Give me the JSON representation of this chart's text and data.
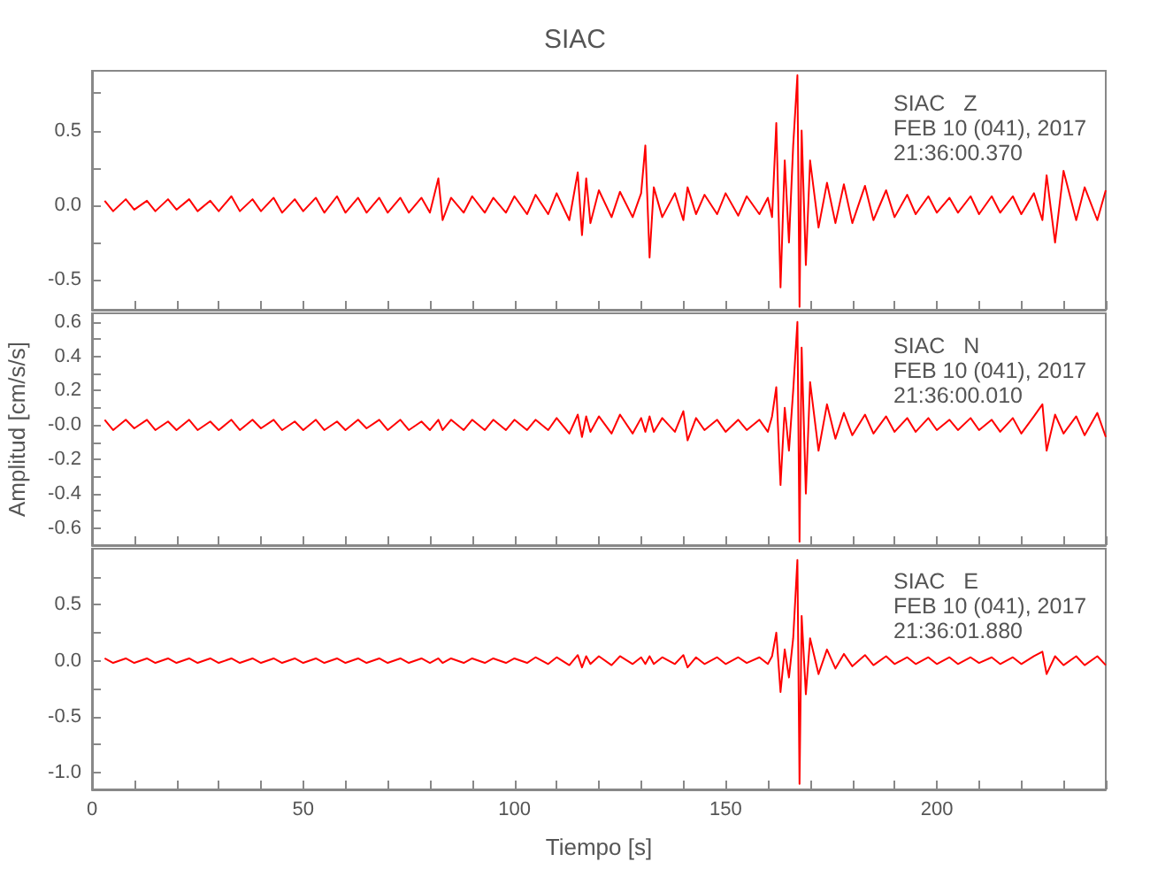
{
  "chart_data": [
    {
      "type": "line",
      "title": "SIAC",
      "annotations": [
        "SIAC   Z",
        "FEB 10 (041), 2017",
        "21:36:00.370"
      ],
      "tick_labels": "y",
      "grid": false,
      "x": [
        3,
        5,
        8,
        10,
        13,
        15,
        18,
        20,
        23,
        25,
        28,
        30,
        33,
        35,
        38,
        40,
        43,
        45,
        48,
        50,
        53,
        55,
        58,
        60,
        63,
        65,
        68,
        70,
        73,
        75,
        78,
        80,
        82,
        83,
        85,
        88,
        90,
        93,
        95,
        98,
        100,
        103,
        105,
        108,
        110,
        113,
        115,
        116,
        117,
        118,
        120,
        123,
        125,
        128,
        130,
        131,
        132,
        133,
        135,
        138,
        140,
        141,
        143,
        145,
        148,
        150,
        153,
        155,
        158,
        160,
        161,
        162,
        163,
        164,
        165,
        166,
        167,
        167.5,
        168,
        169,
        170,
        172,
        174,
        176,
        178,
        180,
        183,
        185,
        188,
        190,
        193,
        195,
        198,
        200,
        203,
        205,
        208,
        210,
        213,
        215,
        218,
        220,
        223,
        225,
        226,
        228,
        230,
        233,
        235,
        238,
        240
      ],
      "series": [
        {
          "color": "#ff0000",
          "values": [
            0.03,
            -0.04,
            0.04,
            -0.03,
            0.03,
            -0.04,
            0.04,
            -0.03,
            0.04,
            -0.04,
            0.03,
            -0.04,
            0.06,
            -0.04,
            0.04,
            -0.04,
            0.05,
            -0.05,
            0.04,
            -0.04,
            0.05,
            -0.05,
            0.06,
            -0.05,
            0.05,
            -0.05,
            0.05,
            -0.05,
            0.05,
            -0.05,
            0.05,
            -0.05,
            0.18,
            -0.1,
            0.05,
            -0.05,
            0.06,
            -0.05,
            0.05,
            -0.05,
            0.06,
            -0.06,
            0.07,
            -0.06,
            0.08,
            -0.1,
            0.22,
            -0.2,
            0.18,
            -0.12,
            0.1,
            -0.08,
            0.09,
            -0.08,
            0.08,
            0.4,
            -0.35,
            0.12,
            -0.08,
            0.08,
            -0.1,
            0.12,
            -0.06,
            0.07,
            -0.06,
            0.08,
            -0.07,
            0.06,
            -0.06,
            0.05,
            -0.08,
            0.55,
            -0.55,
            0.3,
            -0.25,
            0.4,
            0.87,
            -0.68,
            0.5,
            -0.4,
            0.3,
            -0.15,
            0.15,
            -0.12,
            0.14,
            -0.12,
            0.13,
            -0.1,
            0.1,
            -0.08,
            0.07,
            -0.06,
            0.06,
            -0.05,
            0.05,
            -0.05,
            0.06,
            -0.06,
            0.06,
            -0.05,
            0.06,
            -0.06,
            0.08,
            -0.1,
            0.2,
            -0.25,
            0.23,
            -0.1,
            0.12,
            -0.1,
            0.1
          ]
        }
      ],
      "xlim": [
        0,
        240
      ],
      "xticks": [
        0,
        {
          "value": 10,
          "label": null
        },
        {
          "value": 20,
          "label": null
        },
        {
          "value": 30,
          "label": null
        },
        {
          "value": 40,
          "label": null
        },
        50,
        {
          "value": 60,
          "label": null
        },
        {
          "value": 70,
          "label": null
        },
        {
          "value": 80,
          "label": null
        },
        {
          "value": 90,
          "label": null
        },
        100,
        {
          "value": 110,
          "label": null
        },
        {
          "value": 120,
          "label": null
        },
        {
          "value": 130,
          "label": null
        },
        {
          "value": 140,
          "label": null
        },
        150,
        {
          "value": 160,
          "label": null
        },
        {
          "value": 170,
          "label": null
        },
        {
          "value": 180,
          "label": null
        },
        {
          "value": 190,
          "label": null
        },
        200,
        {
          "value": 210,
          "label": null
        },
        {
          "value": 220,
          "label": null
        },
        {
          "value": 230,
          "label": null
        },
        {
          "value": 240,
          "label": null
        }
      ],
      "ylim": [
        -0.7,
        0.9
      ],
      "yticks": [
        {
          "value": -0.5,
          "label": "-0.5"
        },
        {
          "value": -0.25,
          "label": null
        },
        {
          "value": 0,
          "label": "0.0"
        },
        {
          "value": 0.25,
          "label": null
        },
        {
          "value": 0.5,
          "label": "0.5"
        },
        {
          "value": 0.75,
          "label": null
        }
      ]
    },
    {
      "type": "line",
      "ylabel": "Amplitud [cm/s/s]",
      "annotations": [
        "SIAC   N",
        "FEB 10 (041), 2017",
        "21:36:00.010"
      ],
      "tick_labels": "y",
      "grid": false,
      "x": [
        3,
        5,
        8,
        10,
        13,
        15,
        18,
        20,
        23,
        25,
        28,
        30,
        33,
        35,
        38,
        40,
        43,
        45,
        48,
        50,
        53,
        55,
        58,
        60,
        63,
        65,
        68,
        70,
        73,
        75,
        78,
        80,
        82,
        83,
        85,
        88,
        90,
        93,
        95,
        98,
        100,
        103,
        105,
        108,
        110,
        113,
        115,
        116,
        117,
        118,
        120,
        123,
        125,
        128,
        130,
        131,
        132,
        133,
        135,
        138,
        140,
        141,
        143,
        145,
        148,
        150,
        153,
        155,
        158,
        160,
        161,
        162,
        163,
        164,
        165,
        166,
        167,
        167.5,
        168,
        169,
        170,
        172,
        174,
        176,
        178,
        180,
        183,
        185,
        188,
        190,
        193,
        195,
        198,
        200,
        203,
        205,
        208,
        210,
        213,
        215,
        218,
        220,
        223,
        225,
        226,
        228,
        230,
        233,
        235,
        238,
        240
      ],
      "series": [
        {
          "color": "#ff0000",
          "values": [
            0.03,
            -0.03,
            0.03,
            -0.02,
            0.03,
            -0.03,
            0.02,
            -0.03,
            0.03,
            -0.03,
            0.02,
            -0.03,
            0.03,
            -0.03,
            0.03,
            -0.02,
            0.03,
            -0.03,
            0.02,
            -0.03,
            0.03,
            -0.03,
            0.02,
            -0.03,
            0.03,
            -0.02,
            0.03,
            -0.03,
            0.03,
            -0.03,
            0.02,
            -0.03,
            0.03,
            -0.03,
            0.03,
            -0.03,
            0.03,
            -0.03,
            0.03,
            -0.03,
            0.03,
            -0.03,
            0.03,
            -0.03,
            0.04,
            -0.05,
            0.06,
            -0.07,
            0.05,
            -0.04,
            0.05,
            -0.05,
            0.06,
            -0.05,
            0.04,
            -0.04,
            0.05,
            -0.04,
            0.04,
            -0.04,
            0.08,
            -0.09,
            0.04,
            -0.03,
            0.03,
            -0.04,
            0.03,
            -0.03,
            0.03,
            -0.04,
            0.05,
            0.22,
            -0.35,
            0.1,
            -0.15,
            0.2,
            0.6,
            -0.68,
            0.45,
            -0.4,
            0.25,
            -0.15,
            0.12,
            -0.08,
            0.07,
            -0.06,
            0.06,
            -0.05,
            0.05,
            -0.04,
            0.04,
            -0.04,
            0.04,
            -0.03,
            0.03,
            -0.03,
            0.04,
            -0.03,
            0.03,
            -0.04,
            0.04,
            -0.05,
            0.05,
            0.12,
            -0.15,
            0.06,
            -0.05,
            0.05,
            -0.06,
            0.07,
            -0.07
          ]
        }
      ],
      "xlim": [
        0,
        240
      ],
      "xticks": [
        0,
        {
          "value": 10,
          "label": null
        },
        {
          "value": 20,
          "label": null
        },
        {
          "value": 30,
          "label": null
        },
        {
          "value": 40,
          "label": null
        },
        50,
        {
          "value": 60,
          "label": null
        },
        {
          "value": 70,
          "label": null
        },
        {
          "value": 80,
          "label": null
        },
        {
          "value": 90,
          "label": null
        },
        100,
        {
          "value": 110,
          "label": null
        },
        {
          "value": 120,
          "label": null
        },
        {
          "value": 130,
          "label": null
        },
        {
          "value": 140,
          "label": null
        },
        150,
        {
          "value": 160,
          "label": null
        },
        {
          "value": 170,
          "label": null
        },
        {
          "value": 180,
          "label": null
        },
        {
          "value": 190,
          "label": null
        },
        200,
        {
          "value": 210,
          "label": null
        },
        {
          "value": 220,
          "label": null
        },
        {
          "value": 230,
          "label": null
        },
        {
          "value": 240,
          "label": null
        }
      ],
      "ylim": [
        -0.7,
        0.65
      ],
      "yticks": [
        {
          "value": -0.6,
          "label": "-0.6"
        },
        {
          "value": -0.5,
          "label": null
        },
        {
          "value": -0.4,
          "label": "-0.4"
        },
        {
          "value": -0.3,
          "label": null
        },
        {
          "value": -0.2,
          "label": "-0.2"
        },
        {
          "value": -0.1,
          "label": null
        },
        {
          "value": 0,
          "label": "-0.0"
        },
        {
          "value": 0.1,
          "label": null
        },
        {
          "value": 0.2,
          "label": "0.2"
        },
        {
          "value": 0.3,
          "label": null
        },
        {
          "value": 0.4,
          "label": "0.4"
        },
        {
          "value": 0.5,
          "label": null
        },
        {
          "value": 0.6,
          "label": "0.6"
        }
      ]
    },
    {
      "type": "line",
      "xlabel": "Tiempo [s]",
      "annotations": [
        "SIAC   E",
        "FEB 10 (041), 2017",
        "21:36:01.880"
      ],
      "grid": false,
      "x": [
        3,
        5,
        8,
        10,
        13,
        15,
        18,
        20,
        23,
        25,
        28,
        30,
        33,
        35,
        38,
        40,
        43,
        45,
        48,
        50,
        53,
        55,
        58,
        60,
        63,
        65,
        68,
        70,
        73,
        75,
        78,
        80,
        82,
        83,
        85,
        88,
        90,
        93,
        95,
        98,
        100,
        103,
        105,
        108,
        110,
        113,
        115,
        116,
        117,
        118,
        120,
        123,
        125,
        128,
        130,
        131,
        132,
        133,
        135,
        138,
        140,
        141,
        143,
        145,
        148,
        150,
        153,
        155,
        158,
        160,
        161,
        162,
        163,
        164,
        165,
        166,
        167,
        167.5,
        168,
        169,
        170,
        172,
        174,
        176,
        178,
        180,
        183,
        185,
        188,
        190,
        193,
        195,
        198,
        200,
        203,
        205,
        208,
        210,
        213,
        215,
        218,
        220,
        223,
        225,
        226,
        228,
        230,
        233,
        235,
        238,
        240
      ],
      "series": [
        {
          "color": "#ff0000",
          "values": [
            0.02,
            -0.02,
            0.02,
            -0.02,
            0.02,
            -0.02,
            0.02,
            -0.02,
            0.02,
            -0.02,
            0.02,
            -0.02,
            0.02,
            -0.02,
            0.02,
            -0.02,
            0.02,
            -0.02,
            0.02,
            -0.02,
            0.02,
            -0.02,
            0.02,
            -0.02,
            0.02,
            -0.02,
            0.02,
            -0.02,
            0.02,
            -0.02,
            0.02,
            -0.02,
            0.02,
            -0.02,
            0.02,
            -0.02,
            0.02,
            -0.02,
            0.02,
            -0.02,
            0.02,
            -0.02,
            0.03,
            -0.03,
            0.03,
            -0.04,
            0.05,
            -0.06,
            0.04,
            -0.03,
            0.04,
            -0.04,
            0.04,
            -0.03,
            0.03,
            -0.03,
            0.04,
            -0.03,
            0.03,
            -0.03,
            0.05,
            -0.06,
            0.03,
            -0.03,
            0.03,
            -0.03,
            0.03,
            -0.02,
            0.03,
            -0.03,
            0.04,
            0.25,
            -0.28,
            0.1,
            -0.15,
            0.2,
            0.9,
            -1.1,
            0.4,
            -0.3,
            0.2,
            -0.12,
            0.1,
            -0.07,
            0.06,
            -0.05,
            0.05,
            -0.04,
            0.04,
            -0.03,
            0.03,
            -0.03,
            0.03,
            -0.03,
            0.03,
            -0.03,
            0.03,
            -0.02,
            0.03,
            -0.03,
            0.03,
            -0.03,
            0.04,
            0.08,
            -0.12,
            0.04,
            -0.04,
            0.04,
            -0.04,
            0.04,
            -0.04
          ]
        }
      ],
      "xlim": [
        0,
        240
      ],
      "xticks": [
        0,
        {
          "value": 10,
          "label": null
        },
        {
          "value": 20,
          "label": null
        },
        {
          "value": 30,
          "label": null
        },
        {
          "value": 40,
          "label": null
        },
        50,
        {
          "value": 60,
          "label": null
        },
        {
          "value": 70,
          "label": null
        },
        {
          "value": 80,
          "label": null
        },
        {
          "value": 90,
          "label": null
        },
        100,
        {
          "value": 110,
          "label": null
        },
        {
          "value": 120,
          "label": null
        },
        {
          "value": 130,
          "label": null
        },
        {
          "value": 140,
          "label": null
        },
        150,
        {
          "value": 160,
          "label": null
        },
        {
          "value": 170,
          "label": null
        },
        {
          "value": 180,
          "label": null
        },
        {
          "value": 190,
          "label": null
        },
        200,
        {
          "value": 210,
          "label": null
        },
        {
          "value": 220,
          "label": null
        },
        {
          "value": 230,
          "label": null
        },
        {
          "value": 240,
          "label": null
        }
      ],
      "ylim": [
        -1.15,
        1.0
      ],
      "yticks": [
        {
          "value": -1,
          "label": "-1.0"
        },
        {
          "value": -0.75,
          "label": null
        },
        {
          "value": -0.5,
          "label": "-0.5"
        },
        {
          "value": -0.25,
          "label": null
        },
        {
          "value": 0,
          "label": "0.0"
        },
        {
          "value": 0.25,
          "label": null
        },
        {
          "value": 0.5,
          "label": "0.5"
        },
        {
          "value": 0.75,
          "label": null
        }
      ]
    }
  ]
}
